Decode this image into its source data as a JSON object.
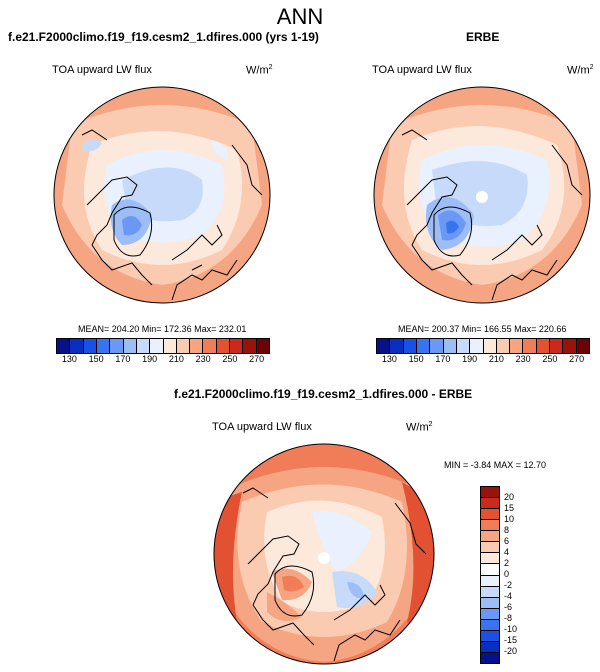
{
  "figure": {
    "title": "ANN"
  },
  "panel_model": {
    "title": "f.e21.F2000climo.f19_f19.cesm2_1.dfires.000 (yrs 1-19)",
    "variable": "TOA upward LW flux",
    "units": "W/m",
    "units_exp": "2",
    "stats": "MEAN= 204.20  Min= 172.36  Max= 232.01"
  },
  "panel_obs": {
    "title": "ERBE",
    "variable": "TOA upward LW flux",
    "units": "W/m",
    "units_exp": "2",
    "stats": "MEAN= 200.37  Min= 166.55  Max= 220.66"
  },
  "panel_diff": {
    "title": "f.e21.F2000climo.f19_f19.cesm2_1.dfires.000 - ERBE",
    "variable": "TOA upward LW flux",
    "units": "W/m",
    "units_exp": "2",
    "stats": "MIN =  -3.84  MAX =  12.70"
  },
  "colorbar_abs": {
    "ticks": [
      "130",
      "150",
      "170",
      "190",
      "210",
      "230",
      "250",
      "270"
    ],
    "colors": [
      "#06108a",
      "#0a2fbf",
      "#1c50e4",
      "#3a73f0",
      "#6a98f4",
      "#9dbdf6",
      "#c7dafa",
      "#e8f1fd",
      "#fde8dc",
      "#fbcbb1",
      "#f6a583",
      "#f07d58",
      "#e35133",
      "#c92a1c",
      "#9a120c",
      "#6b0505"
    ]
  },
  "colorbar_diff": {
    "ticks": [
      "20",
      "15",
      "10",
      "8",
      "6",
      "4",
      "2",
      "0",
      "-2",
      "-4",
      "-6",
      "-8",
      "-10",
      "-15",
      "-20"
    ],
    "colors": [
      "#9a120c",
      "#c92a1c",
      "#e35133",
      "#f07d58",
      "#f6a583",
      "#fbcbb1",
      "#fde8dc",
      "#ffffff",
      "#e8f1fd",
      "#c7dafa",
      "#9dbdf6",
      "#6a98f4",
      "#3a73f0",
      "#1c50e4",
      "#0a2fbf",
      "#06108a"
    ]
  }
}
